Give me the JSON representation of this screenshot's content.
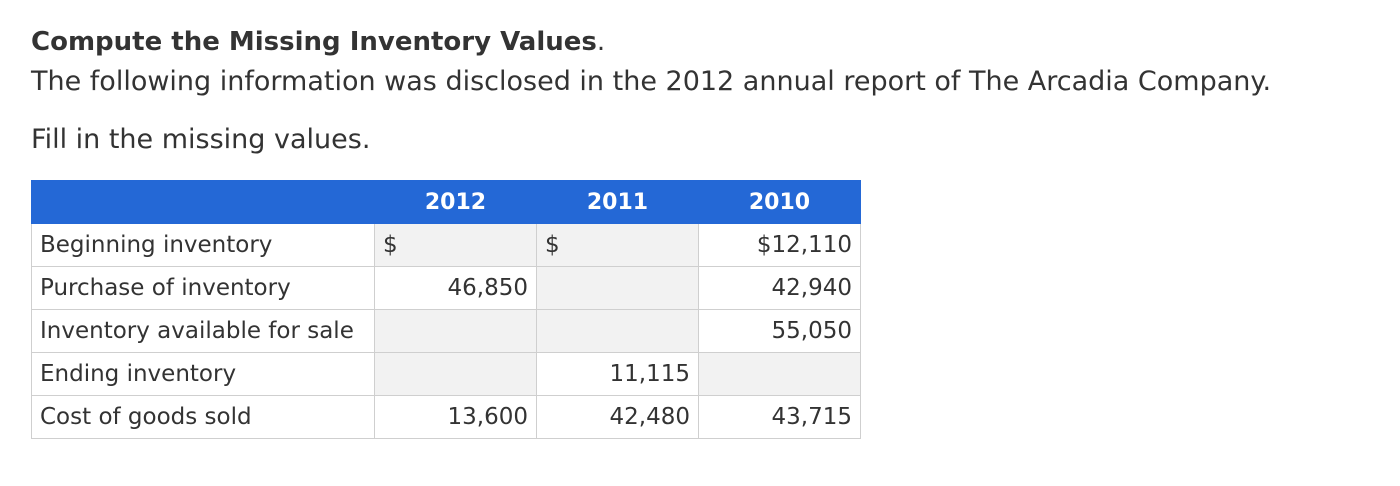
{
  "problem": {
    "title": "Compute the Missing Inventory Values",
    "title_period": ".",
    "intro": "The following information was disclosed in the 2012 annual report of The Arcadia Company.",
    "instruction": "Fill in the missing values."
  },
  "table": {
    "headers": [
      "",
      "2012",
      "2011",
      "2010"
    ],
    "currency_symbol": "$",
    "rows": [
      {
        "label": "Beginning inventory",
        "c2012": "",
        "c2011": "",
        "c2010": "$12,110"
      },
      {
        "label": "Purchase of inventory",
        "c2012": "46,850",
        "c2011": "",
        "c2010": "42,940"
      },
      {
        "label": "Inventory available for sale",
        "c2012": "",
        "c2011": "",
        "c2010": "55,050"
      },
      {
        "label": "Ending inventory",
        "c2012": "",
        "c2011": "11,115",
        "c2010": ""
      },
      {
        "label": "Cost of goods sold",
        "c2012": "13,600",
        "c2011": "42,480",
        "c2010": "43,715"
      }
    ]
  }
}
